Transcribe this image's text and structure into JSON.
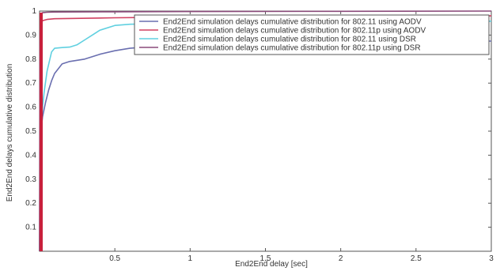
{
  "chart_data": {
    "type": "line",
    "title": "",
    "xlabel": "End2End delay [sec]",
    "ylabel": "End2End delays cumulative distribution",
    "xlim": [
      0,
      3
    ],
    "ylim": [
      0,
      1
    ],
    "xticks": [
      0.5,
      1,
      1.5,
      2,
      2.5,
      3
    ],
    "xtick_labels": [
      "0.5",
      "1",
      "1.5",
      "2",
      "2.5",
      "3"
    ],
    "yticks": [
      0.1,
      0.2,
      0.3,
      0.4,
      0.5,
      0.6,
      0.7,
      0.8,
      0.9,
      1
    ],
    "ytick_labels": [
      "0.1",
      "0.2",
      "0.3",
      "0.4",
      "0.5",
      "0.6",
      "0.7",
      "0.8",
      "0.9",
      "1"
    ],
    "grid": false,
    "legend_position": "top-right",
    "series": [
      {
        "name": "End2End simulation delays cumulative distribution for 802.11 using AODV",
        "color": "#6a6fb0",
        "x": [
          0,
          0.01,
          0.02,
          0.04,
          0.06,
          0.08,
          0.1,
          0.15,
          0.2,
          0.25,
          0.3,
          0.4,
          0.5,
          0.6,
          0.7,
          0.8,
          1.0,
          1.5,
          2.0,
          2.5,
          3.0
        ],
        "y": [
          0,
          0.5,
          0.56,
          0.62,
          0.67,
          0.71,
          0.74,
          0.78,
          0.79,
          0.795,
          0.8,
          0.82,
          0.835,
          0.845,
          0.85,
          0.855,
          0.86,
          0.865,
          0.87,
          0.872,
          0.875
        ]
      },
      {
        "name": "End2End simulation delays cumulative distribution for 802.11p using AODV",
        "color": "#d04060",
        "x": [
          0,
          0.003,
          0.006,
          0.01,
          0.02,
          0.03,
          0.05,
          0.1,
          0.5,
          1.0,
          2.0,
          3.0
        ],
        "y": [
          0,
          0.6,
          0.9,
          0.95,
          0.96,
          0.962,
          0.965,
          0.968,
          0.972,
          0.975,
          0.978,
          0.98
        ]
      },
      {
        "name": "End2End simulation delays cumulative distribution for 802.11 using DSR",
        "color": "#60d0e0",
        "x": [
          0,
          0.01,
          0.02,
          0.03,
          0.05,
          0.08,
          0.1,
          0.15,
          0.2,
          0.25,
          0.3,
          0.35,
          0.4,
          0.5,
          0.6,
          0.8,
          1.0,
          1.5,
          2.0,
          3.0
        ],
        "y": [
          0,
          0.5,
          0.6,
          0.66,
          0.75,
          0.83,
          0.845,
          0.848,
          0.85,
          0.86,
          0.88,
          0.9,
          0.92,
          0.94,
          0.945,
          0.948,
          0.95,
          0.952,
          0.955,
          0.958
        ]
      },
      {
        "name": "End2End simulation delays cumulative distribution for 802.11p using DSR",
        "color": "#8a4a7a",
        "x": [
          0,
          0.002,
          0.004,
          0.006,
          0.01,
          0.02,
          0.05,
          0.1,
          0.5,
          1.0,
          2.0,
          3.0
        ],
        "y": [
          0,
          0.8,
          0.95,
          0.98,
          0.99,
          0.993,
          0.995,
          0.996,
          0.997,
          0.998,
          0.999,
          1.0
        ]
      }
    ]
  }
}
